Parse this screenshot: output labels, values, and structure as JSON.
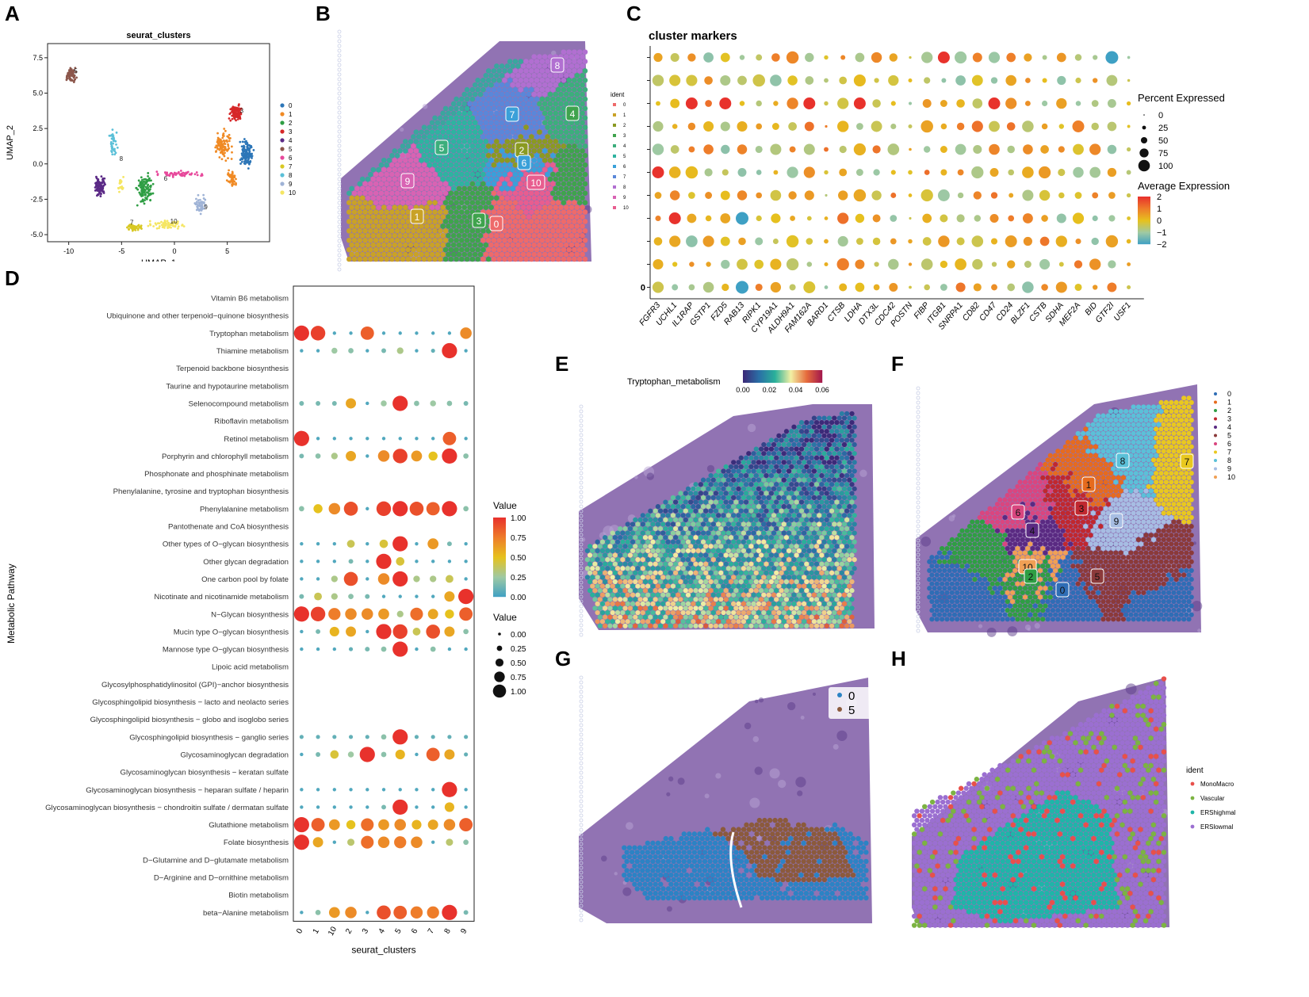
{
  "panel_labels": [
    "A",
    "B",
    "C",
    "D",
    "E",
    "F",
    "G",
    "H"
  ],
  "chart_data": [
    {
      "id": "A",
      "type": "scatter",
      "title": "seurat_clusters",
      "xlabel": "UMAP_1",
      "ylabel": "UMAP_2",
      "xlim": [
        -12,
        9
      ],
      "ylim": [
        -5.5,
        8.5
      ],
      "xticks": [
        "-10",
        "-5",
        "0",
        "5"
      ],
      "xtick_values": [
        -10,
        -5,
        0,
        5
      ],
      "yticks": [
        "7.5",
        "5.0",
        "2.5",
        "0.0",
        "-2.5",
        "-5.0"
      ],
      "ytick_values": [
        7.5,
        5.0,
        2.5,
        0.0,
        -2.5,
        -5.0
      ],
      "legend": [
        "0",
        "1",
        "2",
        "3",
        "4",
        "5",
        "6",
        "7",
        "8",
        "9",
        "10"
      ],
      "colors": [
        "#2d76b8",
        "#f08a24",
        "#2f9e44",
        "#d62728",
        "#5b2a86",
        "#8c564b",
        "#e7489b",
        "#d8c824",
        "#5bc0d8",
        "#9fb3d6",
        "#f5e663"
      ],
      "cluster_labels": [
        {
          "text": "3",
          "x": 6.2,
          "y": 3.6
        },
        {
          "text": "6",
          "x": -1.0,
          "y": -1.2
        },
        {
          "text": "8",
          "x": -5.2,
          "y": 0.2
        },
        {
          "text": "9",
          "x": 2.8,
          "y": -3.2
        },
        {
          "text": "10",
          "x": -0.4,
          "y": -4.2
        },
        {
          "text": "7",
          "x": -4.2,
          "y": -4.3
        },
        {
          "text": "5",
          "x": -9.5,
          "y": 6.4
        }
      ]
    },
    {
      "id": "C",
      "type": "dot",
      "title": "cluster markers",
      "genes": [
        "FGFR3",
        "UCHL1",
        "IL1RAP",
        "GSTP1",
        "FZD5",
        "RAB13",
        "RIPK1",
        "CYP19A1",
        "ALDH9A1",
        "FAM162A",
        "BARD1",
        "CTSB",
        "LDHA",
        "DTX3L",
        "CDC42",
        "POSTN",
        "FIBP",
        "ITGB1",
        "SNRPA1",
        "CD82",
        "CD47",
        "CD24",
        "BLZF1",
        "CSTB",
        "SDHA",
        "MEF2A",
        "BID",
        "GTF2I",
        "USF1"
      ],
      "y_tick_label": "0",
      "size_legend_title": "Percent Expressed",
      "size_legend": [
        "0",
        "25",
        "50",
        "75",
        "100"
      ],
      "size_values": [
        0,
        25,
        50,
        75,
        100
      ],
      "color_legend_title": "Average Expression",
      "color_legend": [
        "2",
        "1",
        "0",
        "−1",
        "−2"
      ],
      "color_values": [
        2,
        1,
        0,
        -1,
        -2
      ],
      "rows": 11
    },
    {
      "id": "D",
      "type": "dot",
      "xlabel": "seurat_clusters",
      "ylabel": "Metabolic Pathway",
      "x_categories": [
        "0",
        "1",
        "10",
        "2",
        "3",
        "4",
        "5",
        "6",
        "7",
        "8",
        "9"
      ],
      "pathways": [
        "Vitamin B6 metabolism",
        "Ubiquinone and other terpenoid−quinone biosynthesis",
        "Tryptophan metabolism",
        "Thiamine metabolism",
        "Terpenoid backbone biosynthesis",
        "Taurine and hypotaurine metabolism",
        "Selenocompound metabolism",
        "Riboflavin metabolism",
        "Retinol metabolism",
        "Porphyrin and chlorophyll metabolism",
        "Phosphonate and phosphinate metabolism",
        "Phenylalanine, tyrosine and tryptophan biosynthesis",
        "Phenylalanine metabolism",
        "Pantothenate and CoA biosynthesis",
        "Other types of O−glycan biosynthesis",
        "Other glycan degradation",
        "One carbon pool by folate",
        "Nicotinate and nicotinamide metabolism",
        "N−Glycan biosynthesis",
        "Mucin type O−glycan biosynthesis",
        "Mannose type O−glycan biosynthesis",
        "Lipoic acid metabolism",
        "Glycosylphosphatidylinositol (GPI)−anchor biosynthesis",
        "Glycosphingolipid biosynthesis − lacto and neolacto series",
        "Glycosphingolipid biosynthesis − globo and isoglobo series",
        "Glycosphingolipid biosynthesis − ganglio series",
        "Glycosaminoglycan degradation",
        "Glycosaminoglycan biosynthesis − keratan sulfate",
        "Glycosaminoglycan biosynthesis − heparan sulfate / heparin",
        "Glycosaminoglycan biosynthesis − chondroitin sulfate / dermatan sulfate",
        "Glutathione metabolism",
        "Folate biosynthesis",
        "D−Glutamine and D−glutamate metabolism",
        "D−Arginine and D−ornithine metabolism",
        "Biotin metabolism",
        "beta−Alanine metabolism"
      ],
      "values": [
        [
          0,
          0,
          0,
          0,
          0,
          0,
          0,
          0,
          0,
          0,
          0
        ],
        [
          0,
          0,
          0,
          0,
          0,
          0,
          0,
          0,
          0,
          0,
          0
        ],
        [
          1.0,
          0.95,
          0.05,
          0.05,
          0.85,
          0.05,
          0.05,
          0.05,
          0.05,
          0.05,
          0.7
        ],
        [
          0.05,
          0.05,
          0.25,
          0.2,
          0.05,
          0.15,
          0.3,
          0.05,
          0.1,
          1.0,
          0.05
        ],
        [
          0,
          0,
          0,
          0,
          0,
          0,
          0,
          0,
          0,
          0,
          0
        ],
        [
          0,
          0,
          0,
          0,
          0,
          0,
          0,
          0,
          0,
          0,
          0
        ],
        [
          0.15,
          0.15,
          0.15,
          0.6,
          0.05,
          0.25,
          1.0,
          0.2,
          0.25,
          0.2,
          0.15
        ],
        [
          0,
          0,
          0,
          0,
          0,
          0,
          0,
          0,
          0,
          0,
          0
        ],
        [
          1.0,
          0.05,
          0.05,
          0.05,
          0.05,
          0.05,
          0.05,
          0.05,
          0.05,
          0.85,
          0.05
        ],
        [
          0.15,
          0.2,
          0.3,
          0.6,
          0.05,
          0.7,
          0.95,
          0.65,
          0.5,
          1.0,
          0.2
        ],
        [
          0,
          0,
          0,
          0,
          0,
          0,
          0,
          0,
          0,
          0,
          0
        ],
        [
          0,
          0,
          0,
          0,
          0,
          0,
          0,
          0,
          0,
          0,
          0
        ],
        [
          0.2,
          0.5,
          0.7,
          0.9,
          0.05,
          0.95,
          1.0,
          0.9,
          0.85,
          1.0,
          0.2
        ],
        [
          0,
          0,
          0,
          0,
          0,
          0,
          0,
          0,
          0,
          0,
          0
        ],
        [
          0.05,
          0.05,
          0.05,
          0.4,
          0.05,
          0.45,
          1.0,
          0.05,
          0.65,
          0.15,
          0.05
        ],
        [
          0.05,
          0.05,
          0.05,
          0.15,
          0.05,
          1.0,
          0.45,
          0.05,
          0.05,
          0.05,
          0.05
        ],
        [
          0.05,
          0.05,
          0.3,
          0.9,
          0.05,
          0.7,
          1.0,
          0.3,
          0.3,
          0.4,
          0.05
        ],
        [
          0.15,
          0.4,
          0.3,
          0.2,
          0.15,
          0.05,
          0.05,
          0.05,
          0.05,
          0.6,
          1.0
        ],
        [
          1.0,
          0.95,
          0.75,
          0.7,
          0.7,
          0.65,
          0.3,
          0.8,
          0.6,
          0.5,
          0.85
        ],
        [
          0.05,
          0.15,
          0.55,
          0.6,
          0.05,
          1.0,
          0.95,
          0.4,
          0.9,
          0.6,
          0.2
        ],
        [
          0.05,
          0.05,
          0.05,
          0.1,
          0.15,
          0.2,
          1.0,
          0.05,
          0.2,
          0.05,
          0.05
        ],
        [
          0,
          0,
          0,
          0,
          0,
          0,
          0,
          0,
          0,
          0,
          0
        ],
        [
          0,
          0,
          0,
          0,
          0,
          0,
          0,
          0,
          0,
          0,
          0
        ],
        [
          0,
          0,
          0,
          0,
          0,
          0,
          0,
          0,
          0,
          0,
          0
        ],
        [
          0,
          0,
          0,
          0,
          0,
          0,
          0,
          0,
          0,
          0,
          0
        ],
        [
          0.1,
          0.1,
          0.1,
          0.1,
          0.1,
          0.2,
          1.0,
          0.1,
          0.1,
          0.1,
          0.1
        ],
        [
          0.05,
          0.15,
          0.45,
          0.25,
          1.0,
          0.2,
          0.55,
          0.05,
          0.85,
          0.6,
          0.1
        ],
        [
          0,
          0,
          0,
          0,
          0,
          0,
          0,
          0,
          0,
          0,
          0
        ],
        [
          0.05,
          0.05,
          0.05,
          0.05,
          0.05,
          0.05,
          0.05,
          0.05,
          0.05,
          1.0,
          0.05
        ],
        [
          0.05,
          0.05,
          0.05,
          0.05,
          0.05,
          0.15,
          1.0,
          0.05,
          0.05,
          0.55,
          0.05
        ],
        [
          1.0,
          0.85,
          0.65,
          0.5,
          0.8,
          0.65,
          0.7,
          0.55,
          0.6,
          0.7,
          0.85
        ],
        [
          1.0,
          0.6,
          0.05,
          0.35,
          0.8,
          0.7,
          0.75,
          0.7,
          0.05,
          0.35,
          0.2
        ],
        [
          0,
          0,
          0,
          0,
          0,
          0,
          0,
          0,
          0,
          0,
          0
        ],
        [
          0,
          0,
          0,
          0,
          0,
          0,
          0,
          0,
          0,
          0,
          0
        ],
        [
          0,
          0,
          0,
          0,
          0,
          0,
          0,
          0,
          0,
          0,
          0
        ],
        [
          0.05,
          0.2,
          0.65,
          0.7,
          0.05,
          0.9,
          0.85,
          0.75,
          0.75,
          1.0,
          0.15
        ]
      ],
      "color_legend_title": "Value",
      "color_legend": [
        "1.00",
        "0.75",
        "0.50",
        "0.25",
        "0.00"
      ],
      "size_legend_title": "Value",
      "size_legend": [
        "0.00",
        "0.25",
        "0.50",
        "0.75",
        "1.00"
      ],
      "legend_values": [
        0,
        0.25,
        0.5,
        0.75,
        1
      ]
    },
    {
      "id": "B",
      "type": "spatial",
      "legend_title": "ident",
      "legend": [
        "0",
        "1",
        "2",
        "3",
        "4",
        "5",
        "6",
        "7",
        "8",
        "9",
        "10"
      ],
      "colors": [
        "#ee6a6a",
        "#c9a227",
        "#8a9a22",
        "#3fa34d",
        "#3cae7c",
        "#2eb3a0",
        "#3aa0d9",
        "#5a87d9",
        "#b16fd1",
        "#d863b3",
        "#e85d8f"
      ],
      "spot_labels": [
        "8",
        "7",
        "4",
        "5",
        "2",
        "6",
        "10",
        "9",
        "1",
        "3",
        "0"
      ]
    },
    {
      "id": "E",
      "type": "spatial",
      "title": "Tryptophan_metabolism",
      "colorbar_ticks": [
        "0.00",
        "0.02",
        "0.04",
        "0.06"
      ],
      "colorbar_values": [
        0.0,
        0.02,
        0.04,
        0.06
      ]
    },
    {
      "id": "F",
      "type": "spatial",
      "legend": [
        "0",
        "1",
        "2",
        "3",
        "4",
        "5",
        "6",
        "7",
        "8",
        "9",
        "10"
      ],
      "colors": [
        "#2f6db5",
        "#e66b1e",
        "#2f9e44",
        "#c0282f",
        "#5a2a82",
        "#8b3a3a",
        "#d9467f",
        "#e9c81f",
        "#5bc0d8",
        "#a7bde3",
        "#f0a055"
      ],
      "spot_labels": [
        "8",
        "7",
        "1",
        "6",
        "4",
        "3",
        "9",
        "10",
        "2",
        "0",
        "5"
      ]
    },
    {
      "id": "G",
      "type": "spatial",
      "legend": [
        "0",
        "5"
      ],
      "colors": [
        "#2c83c4",
        "#8b5a3c"
      ]
    },
    {
      "id": "H",
      "type": "spatial",
      "legend_title": "ident",
      "legend": [
        "MonoMacro",
        "Vascular",
        "ERShighmal",
        "ERSlowmal"
      ],
      "colors": [
        "#e8504b",
        "#7cb342",
        "#1fb5a8",
        "#9b6fd1"
      ]
    }
  ]
}
